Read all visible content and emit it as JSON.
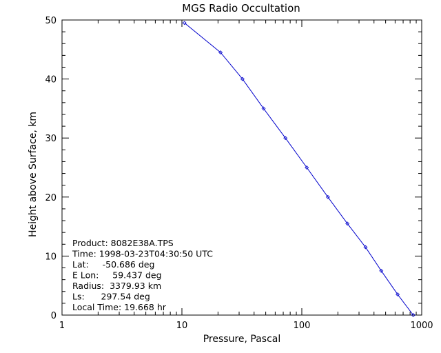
{
  "chart_data": {
    "type": "line",
    "title": "MGS Radio Occultation",
    "xlabel": "Pressure, Pascal",
    "ylabel": "Height above Surface, km",
    "x_scale": "log",
    "xlim": [
      1,
      1000
    ],
    "ylim": [
      0,
      50
    ],
    "x_ticks": [
      {
        "value": 1,
        "label": "1"
      },
      {
        "value": 10,
        "label": "10"
      },
      {
        "value": 100,
        "label": "100"
      },
      {
        "value": 1000,
        "label": "1000"
      }
    ],
    "y_ticks": [
      {
        "value": 0,
        "label": "0"
      },
      {
        "value": 10,
        "label": "10"
      },
      {
        "value": 20,
        "label": "20"
      },
      {
        "value": 30,
        "label": "30"
      },
      {
        "value": 40,
        "label": "40"
      },
      {
        "value": 50,
        "label": "50"
      }
    ],
    "grid": false,
    "legend": null,
    "series": [
      {
        "color": "#0000cc",
        "marker": "diamond",
        "points": [
          {
            "x": 850,
            "y": 0
          },
          {
            "x": 630,
            "y": 3.5
          },
          {
            "x": 460,
            "y": 7.5
          },
          {
            "x": 340,
            "y": 11.5
          },
          {
            "x": 240,
            "y": 15.5
          },
          {
            "x": 165,
            "y": 20
          },
          {
            "x": 110,
            "y": 25
          },
          {
            "x": 73,
            "y": 30
          },
          {
            "x": 48,
            "y": 35
          },
          {
            "x": 32,
            "y": 40
          },
          {
            "x": 21,
            "y": 44.5
          },
          {
            "x": 10.5,
            "y": 49.5
          }
        ]
      }
    ],
    "annotations": [
      "Product: 8082E38A.TPS",
      "Time: 1998-03-23T04:30:50 UTC",
      "Lat:     -50.686 deg",
      "E Lon:     59.437 deg",
      "Radius:  3379.93 km",
      "Ls:      297.54 deg",
      "Local Time: 19.668 hr"
    ]
  }
}
